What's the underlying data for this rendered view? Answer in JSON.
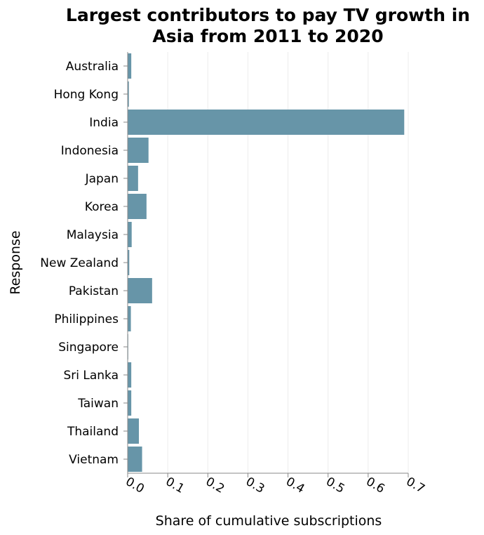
{
  "chart_data": {
    "type": "bar",
    "orientation": "horizontal",
    "title": [
      "Largest contributors to pay TV growth in",
      "Asia from 2011 to 2020"
    ],
    "xlabel": "Share of cumulative subscriptions",
    "ylabel": "Response",
    "xlim": [
      0,
      0.7
    ],
    "xticks": [
      "0.0",
      "0.1",
      "0.2",
      "0.3",
      "0.4",
      "0.5",
      "0.6",
      "0.7"
    ],
    "grid": true,
    "bar_color": "#6795a8",
    "categories": [
      "Australia",
      "Hong Kong",
      "India",
      "Indonesia",
      "Japan",
      "Korea",
      "Malaysia",
      "New Zealand",
      "Pakistan",
      "Philippines",
      "Singapore",
      "Sri Lanka",
      "Taiwan",
      "Thailand",
      "Vietnam"
    ],
    "values": [
      0.009,
      0.003,
      0.69,
      0.052,
      0.026,
      0.047,
      0.01,
      0.004,
      0.061,
      0.008,
      0.001,
      0.009,
      0.009,
      0.028,
      0.036
    ]
  }
}
